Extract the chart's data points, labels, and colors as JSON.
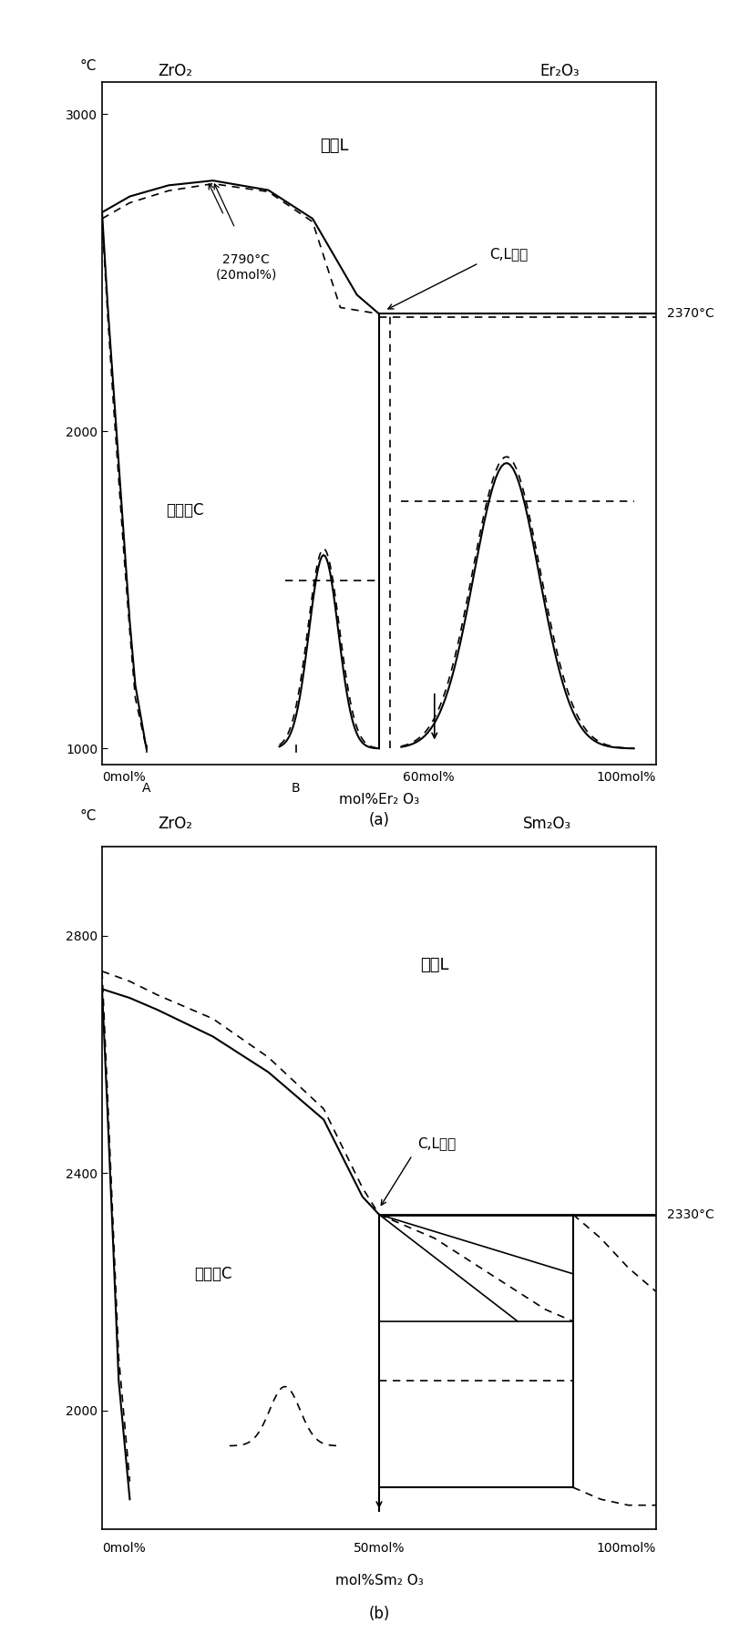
{
  "fig_width": 8.0,
  "fig_height": 18.04,
  "background": "#ffffff",
  "ax1": {
    "ylim": [
      950,
      3100
    ],
    "yticks": [
      1000,
      2000,
      3000
    ],
    "title_left": "ZrO₂",
    "title_right": "Er₂O₃",
    "ylabel": "°C",
    "xlabel": "mol%Er₂ O₃",
    "label_liquid": "液相L",
    "label_solid": "固溶体C",
    "label_coexist": "C,L共存",
    "label_peak": "2790°C\n(20mol%)",
    "label_temp_right": "2370°C",
    "label_A": "A",
    "label_B": "B",
    "label_60": "60mol%",
    "label_0": "0mol%",
    "label_100": "100mol%",
    "sublabel": "(a)"
  },
  "ax2": {
    "ylim": [
      1800,
      2950
    ],
    "yticks": [
      2000,
      2400,
      2800
    ],
    "title_left": "ZrO₂",
    "title_right": "Sm₂O₃",
    "ylabel": "°C",
    "xlabel": "mol%Sm₂ O₃",
    "label_liquid": "液相L",
    "label_solid": "固溶体C",
    "label_coexist": "C,L共存",
    "label_temp_right": "2330°C",
    "label_0": "0mol%",
    "label_50": "50mol%",
    "label_100": "100mol%",
    "sublabel": "(b)"
  }
}
